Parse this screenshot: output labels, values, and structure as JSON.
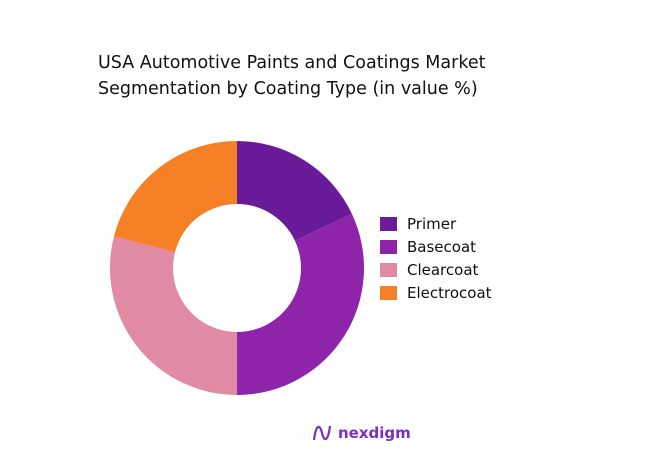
{
  "chart_data": {
    "type": "pie",
    "donut": true,
    "title_lines": [
      "USA Automotive Paints and Coatings Market",
      "Segmentation by Coating Type (in value %)"
    ],
    "categories": [
      "Primer",
      "Basecoat",
      "Clearcoat",
      "Electrocoat"
    ],
    "values": [
      18,
      32,
      29,
      21
    ],
    "colors": [
      "#6a1b9a",
      "#8e24aa",
      "#e08aa3",
      "#f58025"
    ],
    "legend_position": "right"
  },
  "brand": {
    "name": "nexdigm",
    "color": "#7b2fbf"
  }
}
